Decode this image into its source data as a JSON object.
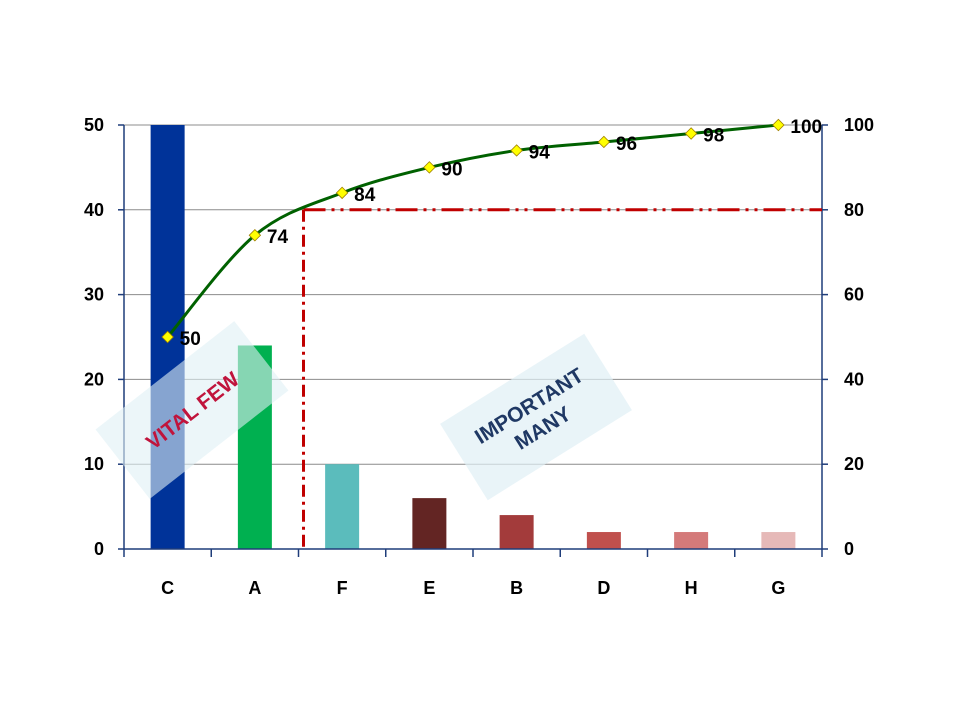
{
  "chart_data": {
    "type": "bar",
    "categories": [
      "C",
      "A",
      "F",
      "E",
      "B",
      "D",
      "H",
      "G"
    ],
    "series": [
      {
        "kind": "bar",
        "axis": "left",
        "values": [
          50,
          24,
          10,
          6,
          4,
          2,
          2,
          2
        ]
      },
      {
        "kind": "line",
        "axis": "right",
        "values": [
          50,
          74,
          84,
          90,
          94,
          96,
          98,
          100
        ],
        "data_labels": [
          "50",
          "74",
          "84",
          "90",
          "94",
          "96",
          "98",
          "100"
        ]
      }
    ],
    "bar_colors": [
      "#003399",
      "#00b050",
      "#5bbcbc",
      "#632523",
      "#a33b3b",
      "#c0504d",
      "#d47a7a",
      "#e6b9b8"
    ],
    "line_color": "#006100",
    "marker_color": "#ffff00",
    "threshold": {
      "value": 80,
      "axis": "right",
      "start_category_boundary": 2,
      "color": "#c00000"
    },
    "ylim_left": [
      0,
      50
    ],
    "ylim_right": [
      0,
      100
    ],
    "yticks_left": [
      "0",
      "10",
      "20",
      "30",
      "40",
      "50"
    ],
    "yticks_right": [
      "0",
      "20",
      "40",
      "60",
      "80",
      "100"
    ],
    "grid": true,
    "axis_color": "#1f3d7a",
    "annotations": [
      {
        "text": "VITAL FEW",
        "color": "#c0143c"
      },
      {
        "text_lines": [
          "IMPORTANT",
          "MANY"
        ],
        "color": "#1f3864"
      }
    ]
  }
}
